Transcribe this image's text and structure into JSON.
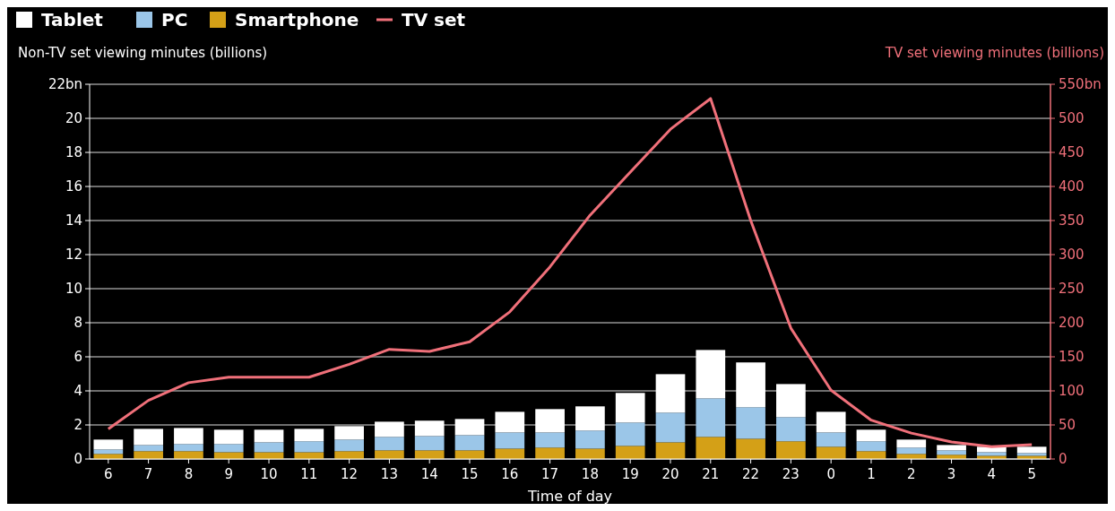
{
  "chart_data": {
    "type": "bar",
    "stacked": true,
    "xlabel": "Time of day",
    "ylabel": "Non-TV set viewing minutes (billions)",
    "y2label": "TV set viewing minutes (billions)",
    "categories": [
      "6",
      "7",
      "8",
      "9",
      "10",
      "11",
      "12",
      "13",
      "14",
      "15",
      "16",
      "17",
      "18",
      "19",
      "20",
      "21",
      "22",
      "23",
      "0",
      "1",
      "2",
      "3",
      "4",
      "5"
    ],
    "series": [
      {
        "name": "Smartphone",
        "color": "#d4a017",
        "values": [
          0.3,
          0.46,
          0.46,
          0.4,
          0.4,
          0.4,
          0.46,
          0.51,
          0.51,
          0.51,
          0.61,
          0.67,
          0.61,
          0.77,
          0.98,
          1.3,
          1.19,
          1.04,
          0.72,
          0.46,
          0.3,
          0.25,
          0.19,
          0.19
        ]
      },
      {
        "name": "PC",
        "color": "#9bc6e8",
        "values": [
          0.26,
          0.36,
          0.42,
          0.48,
          0.58,
          0.64,
          0.68,
          0.79,
          0.84,
          0.89,
          0.95,
          0.89,
          1.06,
          1.37,
          1.74,
          2.26,
          1.85,
          1.42,
          0.84,
          0.58,
          0.37,
          0.26,
          0.21,
          0.16
        ]
      },
      {
        "name": "Tablet",
        "color": "#ffffff",
        "values": [
          0.58,
          0.95,
          0.94,
          0.84,
          0.74,
          0.73,
          0.79,
          0.89,
          0.9,
          0.95,
          1.21,
          1.37,
          1.42,
          1.74,
          2.26,
          2.84,
          2.63,
          1.94,
          1.21,
          0.68,
          0.47,
          0.31,
          0.32,
          0.37
        ]
      },
      {
        "name": "TV set",
        "type": "line",
        "axis": "y2",
        "color": "#f0707a",
        "values": [
          44,
          86,
          112,
          120,
          120,
          120,
          139,
          161,
          158,
          172,
          216,
          282,
          358,
          421,
          484,
          529,
          350,
          192,
          101,
          57,
          38,
          25,
          18,
          21
        ]
      }
    ],
    "ylim": [
      0,
      22
    ],
    "yticks": [
      0,
      2,
      4,
      6,
      8,
      10,
      12,
      14,
      16,
      18,
      20,
      {
        "value": 22,
        "label": "22bn"
      }
    ],
    "y2lim": [
      0,
      550
    ],
    "y2ticks": [
      0,
      50,
      100,
      150,
      200,
      250,
      300,
      350,
      400,
      450,
      500,
      {
        "value": 550,
        "label": "550bn"
      }
    ],
    "grid": "y",
    "legend": "top left",
    "marker": "none",
    "line_style": "solid"
  }
}
